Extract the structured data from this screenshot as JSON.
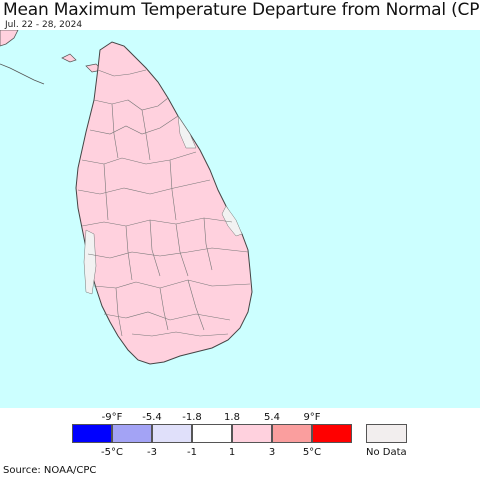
{
  "title": "Mean Maximum Temperature Departure from Normal (CPC)",
  "subtitle": "Jul. 22 - 28, 2024",
  "source": "Source: NOAA/CPC",
  "colors": {
    "ocean": "#ccffff",
    "land_main": "#ffd1de",
    "land_near_normal": "#f2f2f2",
    "border": "#777777"
  },
  "legend": {
    "fahrenheit_ticks": [
      "-9°F",
      "-5.4",
      "-1.8",
      "1.8",
      "5.4",
      "9°F"
    ],
    "celsius_ticks": [
      "-5°C",
      "-3",
      "-1",
      "1",
      "3",
      "5°C"
    ],
    "bins": [
      {
        "color": "#0000ff"
      },
      {
        "color": "#a3a3f5"
      },
      {
        "color": "#e0e0fa"
      },
      {
        "color": "#ffffff"
      },
      {
        "color": "#ffd1de"
      },
      {
        "color": "#fa9e9e"
      },
      {
        "color": "#ff0000"
      }
    ],
    "no_data_label": "No Data",
    "no_data_color": "#f2eeee"
  }
}
